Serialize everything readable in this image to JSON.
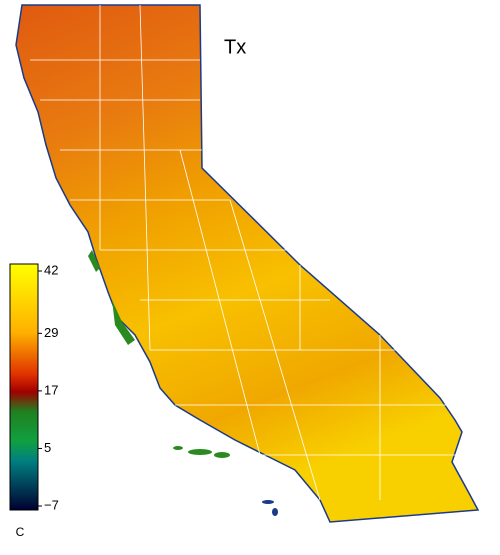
{
  "title": "Tx",
  "colorbar": {
    "lim": [
      -7,
      42
    ],
    "ticks": [
      42,
      29,
      17,
      5,
      {
        "value": -7,
        "label": "−7"
      }
    ],
    "unit": "C"
  }
}
